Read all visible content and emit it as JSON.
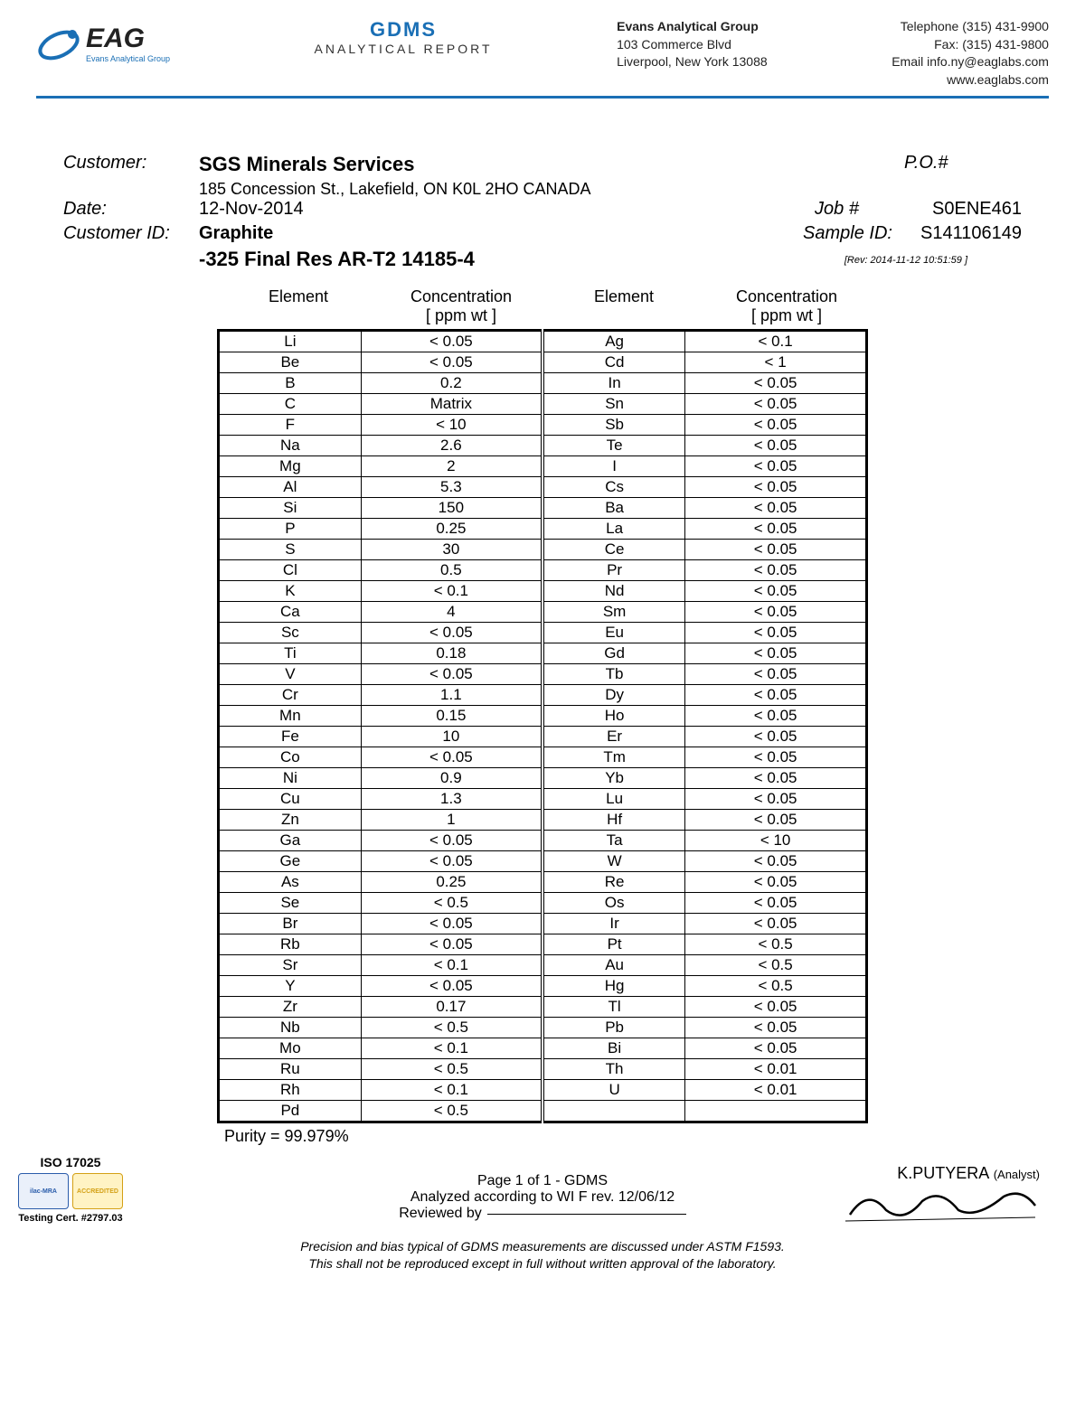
{
  "header": {
    "company_logo_text": "EAG",
    "company_tagline": "Evans Analytical Group",
    "gdms": "GDMS",
    "gdms_sub": "ANALYTICAL REPORT",
    "addr_name": "Evans Analytical Group",
    "addr_l1": "103 Commerce Blvd",
    "addr_l2": "Liverpool, New York 13088",
    "tel": "Telephone (315) 431-9900",
    "fax": "Fax: (315) 431-9800",
    "email": "Email info.ny@eaglabs.com",
    "web": "www.eaglabs.com"
  },
  "meta": {
    "customer_label": "Customer:",
    "customer": "SGS Minerals Services",
    "customer_addr": "185 Concession St., Lakefield, ON K0L 2HO CANADA",
    "po_label": "P.O.#",
    "date_label": "Date:",
    "date": "12-Nov-2014",
    "job_label": "Job #",
    "job": "S0ENE461",
    "custid_label": "Customer ID:",
    "custid": "Graphite",
    "sample_label": "Sample ID:",
    "sample": "S141106149",
    "subtitle": "-325 Final Res AR-T2  14185-4",
    "rev": "[Rev: 2014-11-12  10:51:59 ]"
  },
  "table": {
    "h_element": "Element",
    "h_conc": "Concentration",
    "h_unit": "[ ppm wt ]",
    "columns": [
      "el",
      "conc",
      "el",
      "conc"
    ],
    "rows": [
      [
        "Li",
        "< 0.05",
        "Ag",
        "< 0.1"
      ],
      [
        "Be",
        "< 0.05",
        "Cd",
        "< 1"
      ],
      [
        "B",
        "0.2",
        "In",
        "< 0.05"
      ],
      [
        "C",
        "Matrix",
        "Sn",
        "< 0.05"
      ],
      [
        "F",
        "< 10",
        "Sb",
        "< 0.05"
      ],
      [
        "Na",
        "2.6",
        "Te",
        "< 0.05"
      ],
      [
        "Mg",
        "2",
        "I",
        "< 0.05"
      ],
      [
        "Al",
        "5.3",
        "Cs",
        "< 0.05"
      ],
      [
        "Si",
        "150",
        "Ba",
        "< 0.05"
      ],
      [
        "P",
        "0.25",
        "La",
        "< 0.05"
      ],
      [
        "S",
        "30",
        "Ce",
        "< 0.05"
      ],
      [
        "Cl",
        "0.5",
        "Pr",
        "< 0.05"
      ],
      [
        "K",
        "< 0.1",
        "Nd",
        "< 0.05"
      ],
      [
        "Ca",
        "4",
        "Sm",
        "< 0.05"
      ],
      [
        "Sc",
        "< 0.05",
        "Eu",
        "< 0.05"
      ],
      [
        "Ti",
        "0.18",
        "Gd",
        "< 0.05"
      ],
      [
        "V",
        "< 0.05",
        "Tb",
        "< 0.05"
      ],
      [
        "Cr",
        "1.1",
        "Dy",
        "< 0.05"
      ],
      [
        "Mn",
        "0.15",
        "Ho",
        "< 0.05"
      ],
      [
        "Fe",
        "10",
        "Er",
        "< 0.05"
      ],
      [
        "Co",
        "< 0.05",
        "Tm",
        "< 0.05"
      ],
      [
        "Ni",
        "0.9",
        "Yb",
        "< 0.05"
      ],
      [
        "Cu",
        "1.3",
        "Lu",
        "< 0.05"
      ],
      [
        "Zn",
        "1",
        "Hf",
        "< 0.05"
      ],
      [
        "Ga",
        "< 0.05",
        "Ta",
        "< 10"
      ],
      [
        "Ge",
        "< 0.05",
        "W",
        "< 0.05"
      ],
      [
        "As",
        "0.25",
        "Re",
        "< 0.05"
      ],
      [
        "Se",
        "< 0.5",
        "Os",
        "< 0.05"
      ],
      [
        "Br",
        "< 0.05",
        "Ir",
        "< 0.05"
      ],
      [
        "Rb",
        "< 0.05",
        "Pt",
        "< 0.5"
      ],
      [
        "Sr",
        "< 0.1",
        "Au",
        "< 0.5"
      ],
      [
        "Y",
        "< 0.05",
        "Hg",
        "< 0.5"
      ],
      [
        "Zr",
        "0.17",
        "Tl",
        "< 0.05"
      ],
      [
        "Nb",
        "< 0.5",
        "Pb",
        "< 0.05"
      ],
      [
        "Mo",
        "< 0.1",
        "Bi",
        "< 0.05"
      ],
      [
        "Ru",
        "< 0.5",
        "Th",
        "< 0.01"
      ],
      [
        "Rh",
        "< 0.1",
        "U",
        "< 0.01"
      ],
      [
        "Pd",
        "< 0.5",
        "",
        ""
      ]
    ],
    "purity": "Purity =  99.979%"
  },
  "footer": {
    "iso": "ISO 17025",
    "badge1": "ilac-MRA",
    "badge2": "ACCREDITED",
    "cert": "Testing Cert. #2797.03",
    "page": "Page 1 of 1 - GDMS",
    "analyzed": "Analyzed according to WI F rev. 12/06/12",
    "reviewed": "Reviewed by",
    "analyst": "K.PUTYERA",
    "analyst_role": "(Analyst)",
    "disclaimer1": "Precision and bias typical of GDMS measurements are discussed under ASTM F1593.",
    "disclaimer2": "This shall not be reproduced except in full without written approval of the laboratory."
  },
  "style": {
    "accent": "#1a6fb5",
    "border": "#000000",
    "text": "#000000",
    "bg": "#ffffff"
  }
}
